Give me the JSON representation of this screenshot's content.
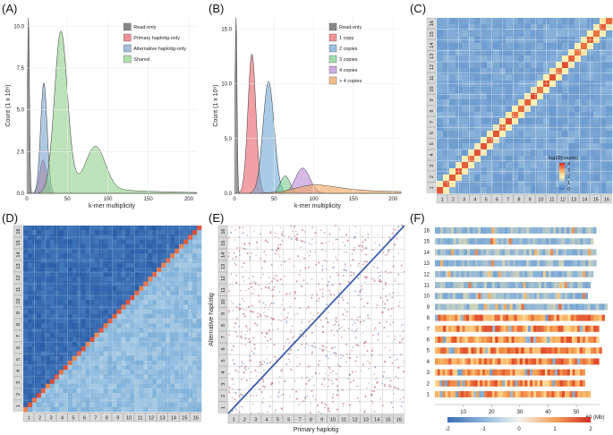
{
  "panels": {
    "A": {
      "label": "(A)",
      "xlabel": "k-mer multiplicity",
      "ylabel": "Count (1 x 10⁶)",
      "xticks": [
        "0",
        "50",
        "100",
        "150",
        "200"
      ],
      "yticks": [
        "0.0",
        "2.5",
        "5.0",
        "7.5",
        "10.0"
      ]
    },
    "B": {
      "label": "(B)",
      "xlabel": "k-mer multiplicity",
      "ylabel": "Count (1 x 10⁶)",
      "xticks": [
        "0",
        "50",
        "100",
        "150",
        "200"
      ],
      "yticks": [
        "0.0",
        "5.0",
        "10.0",
        "15.0"
      ]
    },
    "C": {
      "label": "(C)",
      "legend_title": "log10(counts)",
      "legend_ticks": [
        "4",
        "3",
        "2",
        "1",
        "0"
      ]
    },
    "D": {
      "label": "(D)"
    },
    "E": {
      "label": "(E)",
      "xlabel": "Primary haplotig",
      "ylabel": "Alternative haplotig"
    },
    "F": {
      "label": "(F)",
      "xunit": "60 (Mb)",
      "xticks": [
        "10",
        "20",
        "30",
        "40",
        "50"
      ],
      "scale_ticks": [
        "-2",
        "-1",
        "0",
        "1",
        "2"
      ]
    }
  },
  "chromosomes": [
    "1",
    "2",
    "3",
    "4",
    "5",
    "6",
    "7",
    "8",
    "9",
    "10",
    "11",
    "12",
    "13",
    "14",
    "15",
    "16"
  ],
  "colors": {
    "readonly": "#555555",
    "primary": "#e8626a",
    "alternative": "#7aa3cf",
    "shared": "#8fd18a",
    "copy1": "#e8626a",
    "copy2": "#6fa8d6",
    "copy3": "#7ccf8f",
    "copy4": "#b98ad6",
    "copy5": "#f4a35a"
  },
  "chart_data": [
    {
      "type": "area",
      "id": "A",
      "title": "",
      "xlabel": "k-mer multiplicity",
      "ylabel": "Count (1 x 10⁶)",
      "xlim": [
        0,
        210
      ],
      "ylim": [
        0,
        10.5
      ],
      "series": [
        {
          "name": "Read-only",
          "color": "#555555",
          "peaks": [
            {
              "mu": 2,
              "sigma": 1.2,
              "height": 10.5
            }
          ]
        },
        {
          "name": "Primary haplotig-only",
          "color": "#e8626a",
          "peaks": [
            {
              "mu": 20,
              "sigma": 4,
              "height": 2.0
            }
          ]
        },
        {
          "name": "Alternative haplotig-only",
          "color": "#7aa3cf",
          "peaks": [
            {
              "mu": 21,
              "sigma": 4,
              "height": 6.6
            }
          ]
        },
        {
          "name": "Shared",
          "color": "#8fd18a",
          "peaks": [
            {
              "mu": 42,
              "sigma": 8,
              "height": 9.6
            },
            {
              "mu": 85,
              "sigma": 12,
              "height": 2.5
            }
          ],
          "tail": {
            "start": 60,
            "level": 0.45,
            "decay": 70
          }
        }
      ]
    },
    {
      "type": "area",
      "id": "B",
      "title": "",
      "xlabel": "k-mer multiplicity",
      "ylabel": "Count (1 x 10⁶)",
      "xlim": [
        0,
        210
      ],
      "ylim": [
        0,
        16
      ],
      "series": [
        {
          "name": "Read-only",
          "color": "#555555",
          "peaks": [
            {
              "mu": 2,
              "sigma": 1.2,
              "height": 16
            }
          ]
        },
        {
          "name": "1 copy",
          "color": "#e8626a",
          "peaks": [
            {
              "mu": 22,
              "sigma": 5,
              "height": 12.7
            }
          ]
        },
        {
          "name": "2 copies",
          "color": "#6fa8d6",
          "peaks": [
            {
              "mu": 43,
              "sigma": 7,
              "height": 10.2
            }
          ]
        },
        {
          "name": "3 copies",
          "color": "#7ccf8f",
          "peaks": [
            {
              "mu": 64,
              "sigma": 6,
              "height": 1.6
            }
          ]
        },
        {
          "name": "4 copies",
          "color": "#b98ad6",
          "peaks": [
            {
              "mu": 86,
              "sigma": 9,
              "height": 2.3
            }
          ]
        },
        {
          "name": "> 4 copies",
          "color": "#f4a35a",
          "peaks": [
            {
              "mu": 100,
              "sigma": 30,
              "height": 0.4
            }
          ],
          "tail": {
            "start": 100,
            "level": 0.4,
            "decay": 120
          }
        }
      ]
    },
    {
      "type": "heatmap",
      "id": "C",
      "legend_title": "log10(counts)",
      "value_range": [
        0,
        4
      ],
      "rows": [
        "1",
        "2",
        "3",
        "4",
        "5",
        "6",
        "7",
        "8",
        "9",
        "10",
        "11",
        "12",
        "13",
        "14",
        "15",
        "16"
      ],
      "cols": [
        "1",
        "2",
        "3",
        "4",
        "5",
        "6",
        "7",
        "8",
        "9",
        "10",
        "11",
        "12",
        "13",
        "14",
        "15",
        "16"
      ],
      "diagonal": "high",
      "off_diagonal": "low"
    },
    {
      "type": "heatmap",
      "id": "D",
      "rows": [
        "1",
        "2",
        "3",
        "4",
        "5",
        "6",
        "7",
        "8",
        "9",
        "10",
        "11",
        "12",
        "13",
        "14",
        "15",
        "16"
      ],
      "cols": [
        "1",
        "2",
        "3",
        "4",
        "5",
        "6",
        "7",
        "8",
        "9",
        "10",
        "11",
        "12",
        "13",
        "14",
        "15",
        "16"
      ],
      "diagonal": "high",
      "upper": "dark-blue",
      "lower": "light-blue"
    },
    {
      "type": "scatter",
      "id": "E",
      "xlabel": "Primary haplotig",
      "ylabel": "Alternative haplotig",
      "rows": [
        "1",
        "2",
        "3",
        "4",
        "5",
        "6",
        "7",
        "8",
        "9",
        "10",
        "11",
        "12",
        "13",
        "14",
        "15",
        "16"
      ],
      "cols": [
        "1",
        "2",
        "3",
        "4",
        "5",
        "6",
        "7",
        "8",
        "9",
        "10",
        "11",
        "12",
        "13",
        "14",
        "15",
        "16"
      ]
    },
    {
      "type": "heatmap",
      "id": "F",
      "xlabel": "60 (Mb)",
      "xlim": [
        0,
        62
      ],
      "value_range": [
        -2,
        2
      ],
      "chromosomes": [
        "1",
        "2",
        "3",
        "4",
        "5",
        "6",
        "7",
        "8",
        "9",
        "10",
        "11",
        "12",
        "13",
        "14",
        "15",
        "16"
      ],
      "lengths_mb": [
        55,
        53,
        53,
        58,
        59,
        58,
        58,
        60,
        61,
        54,
        55,
        56,
        57,
        57,
        56,
        57
      ]
    }
  ]
}
